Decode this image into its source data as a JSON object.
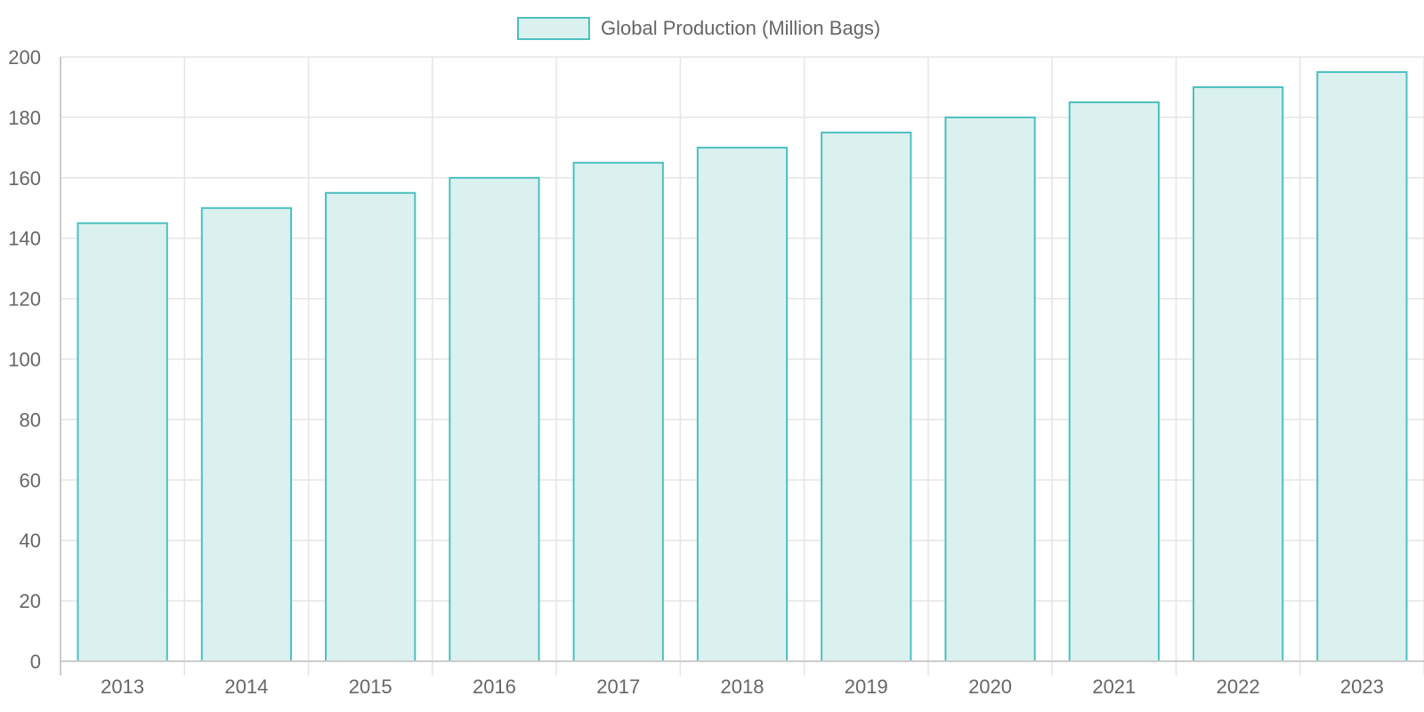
{
  "chart_data": {
    "type": "bar",
    "categories": [
      "2013",
      "2014",
      "2015",
      "2016",
      "2017",
      "2018",
      "2019",
      "2020",
      "2021",
      "2022",
      "2023"
    ],
    "series": [
      {
        "name": "Global Production (Million Bags)",
        "values": [
          145,
          150,
          155,
          160,
          165,
          170,
          175,
          180,
          185,
          190,
          195
        ],
        "border_color": "#4bc0c0",
        "fill_color": "#dbf1ef"
      }
    ],
    "ylim": [
      0,
      200
    ],
    "yticks": [
      "0",
      "20",
      "40",
      "60",
      "80",
      "100",
      "120",
      "140",
      "160",
      "180",
      "200"
    ],
    "grid": true,
    "legend_position": "top-center",
    "grid_color": "#e5e5e5",
    "axis_color": "#cccccc",
    "text_color": "#666666"
  }
}
